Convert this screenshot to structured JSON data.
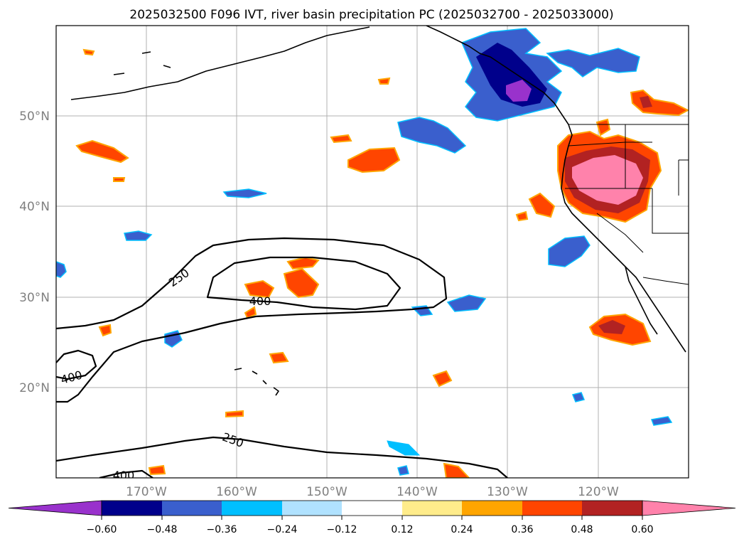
{
  "title": "2025032500 F096 IVT, river basin precipitation PC (2025032700 - 2025033000)",
  "map": {
    "lat_labels": [
      "50°N",
      "40°N",
      "30°N",
      "20°N"
    ],
    "lon_labels": [
      "170°W",
      "160°W",
      "150°W",
      "140°W",
      "130°W",
      "120°W"
    ],
    "lat_range": [
      10,
      60
    ],
    "lon_range": [
      -180,
      -110
    ]
  },
  "ivt_contours": {
    "levels": [
      "250",
      "400"
    ],
    "labels": [
      "250",
      "400",
      "400",
      "250",
      "400"
    ]
  },
  "colorbar": {
    "ticks": [
      "−0.60",
      "−0.48",
      "−0.36",
      "−0.24",
      "−0.12",
      "0.12",
      "0.24",
      "0.36",
      "0.48",
      "0.60"
    ],
    "colors": {
      "under": "#9932cc",
      "neg_060": "#00008b",
      "neg_048": "#3a5fcd",
      "neg_036": "#00bfff",
      "neg_024": "#b0e2ff",
      "neutral": "#ffffff",
      "pos_012": "#ffec8b",
      "pos_024": "#ffa500",
      "pos_036": "#ff4500",
      "pos_048": "#b22222",
      "over": "#ff82ab"
    }
  }
}
